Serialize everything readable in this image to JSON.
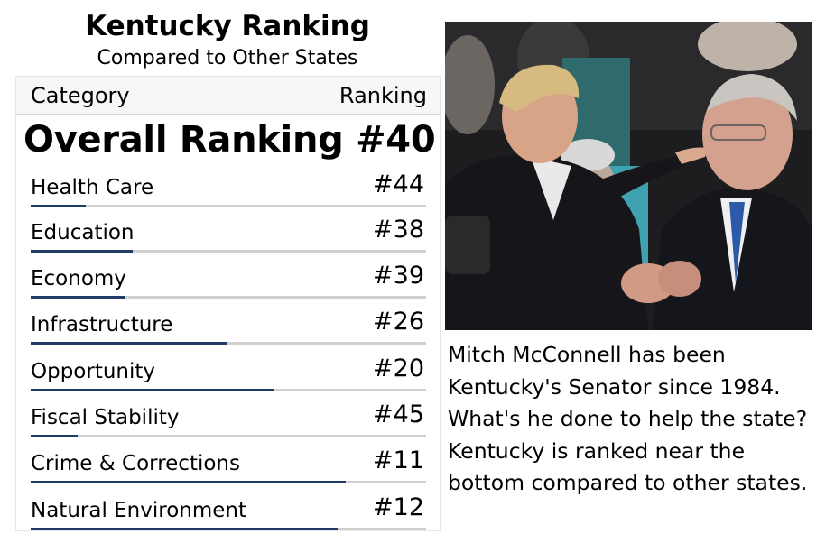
{
  "title": "Kentucky Ranking",
  "subtitle": "Compared to Other States",
  "table": {
    "header_category": "Category",
    "header_ranking": "Ranking",
    "overall": "Overall Ranking #40",
    "rows": [
      {
        "label": "Health Care",
        "rank": "#44",
        "fill_fraction": 0.14
      },
      {
        "label": "Education",
        "rank": "#38",
        "fill_fraction": 0.26
      },
      {
        "label": "Economy",
        "rank": "#39",
        "fill_fraction": 0.24
      },
      {
        "label": "Infrastructure",
        "rank": "#26",
        "fill_fraction": 0.5
      },
      {
        "label": "Opportunity",
        "rank": "#20",
        "fill_fraction": 0.62
      },
      {
        "label": "Fiscal Stability",
        "rank": "#45",
        "fill_fraction": 0.12
      },
      {
        "label": "Crime & Corrections",
        "rank": "#11",
        "fill_fraction": 0.8
      },
      {
        "label": "Natural Environment",
        "rank": "#12",
        "fill_fraction": 0.78
      }
    ],
    "bar_color": "#1f3b66"
  },
  "caption": "Mitch McConnell has been Kentucky's Senator since 1984. What's he done to help the state? Kentucky is ranked near the bottom compared to other states."
}
